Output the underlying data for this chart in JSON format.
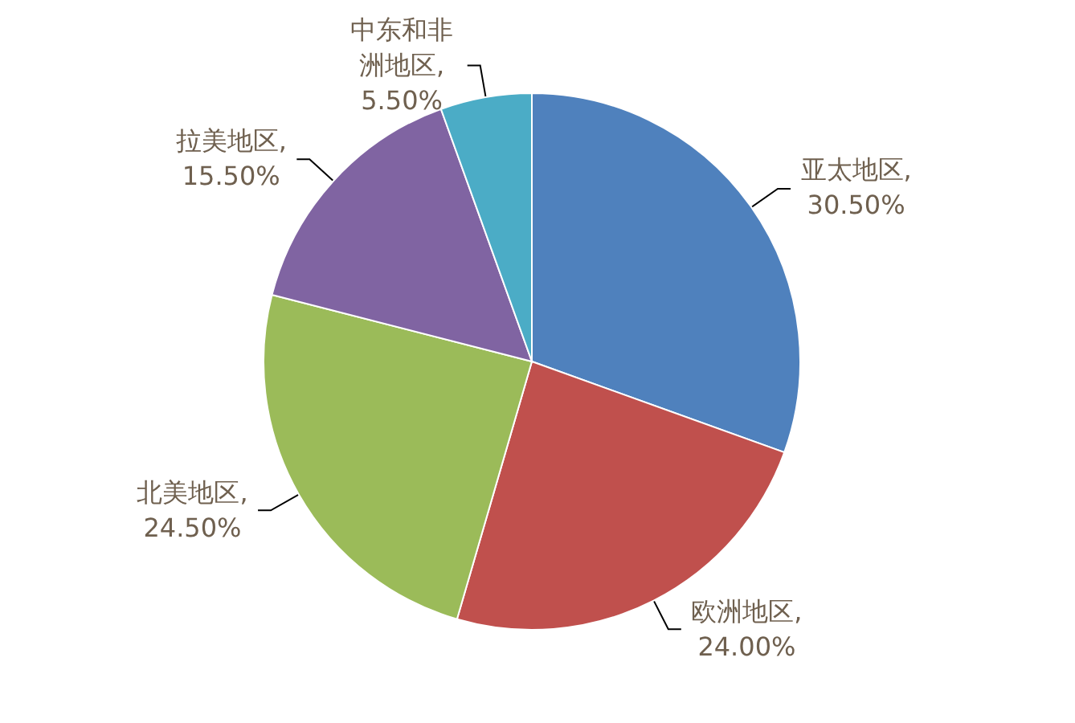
{
  "chart_data": {
    "type": "pie",
    "categories": [
      "亚太地区",
      "欧洲地区",
      "北美地区",
      "拉美地区",
      "中东和非洲地区"
    ],
    "values": [
      30.5,
      24.0,
      24.5,
      15.5,
      5.5
    ],
    "value_labels": [
      ", 30.50%",
      ", 24.00%",
      ", 24.50%",
      ", 15.50%",
      ", 5.50%"
    ],
    "colors": [
      "#4f81bd",
      "#c0504d",
      "#9bbb59",
      "#8064a2",
      "#4bacc6"
    ],
    "legend": false
  }
}
